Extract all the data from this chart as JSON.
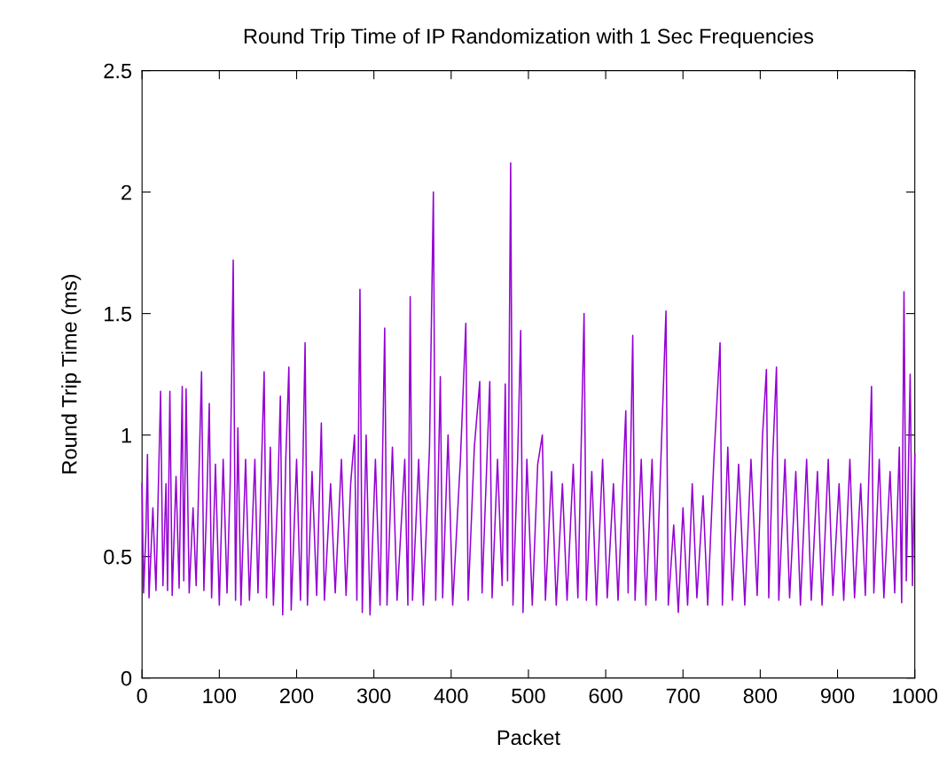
{
  "chart_data": {
    "type": "line",
    "title": "Round Trip Time of IP Randomization with 1 Sec Frequencies",
    "xlabel": "Packet",
    "ylabel": "Round Trip Time (ms)",
    "xlim": [
      0,
      1000
    ],
    "xticks": [
      0,
      100,
      200,
      300,
      400,
      500,
      600,
      700,
      800,
      900,
      1000
    ],
    "ylim": [
      0,
      2.5
    ],
    "yticks": [
      0,
      0.5,
      1,
      1.5,
      2,
      2.5
    ],
    "grid": false,
    "legend": false,
    "series": [
      {
        "color": "#9400d3",
        "x": [
          0,
          2,
          5,
          7,
          9,
          14,
          18,
          24,
          27,
          31,
          33,
          36,
          39,
          44,
          48,
          52,
          54,
          57,
          61,
          66,
          70,
          77,
          80,
          84,
          87,
          90,
          95,
          100,
          105,
          110,
          114,
          118,
          121,
          124,
          128,
          134,
          139,
          146,
          150,
          158,
          161,
          166,
          170,
          176,
          179,
          182,
          186,
          190,
          193,
          200,
          205,
          211,
          214,
          220,
          226,
          232,
          236,
          244,
          250,
          258,
          264,
          270,
          275,
          278,
          282,
          285,
          290,
          295,
          302,
          308,
          314,
          317,
          324,
          330,
          340,
          344,
          347,
          350,
          358,
          364,
          372,
          377,
          380,
          386,
          389,
          396,
          402,
          412,
          419,
          422,
          430,
          437,
          440,
          450,
          453,
          460,
          466,
          470,
          473,
          477,
          480,
          486,
          490,
          493,
          498,
          505,
          512,
          518,
          522,
          530,
          536,
          544,
          550,
          558,
          564,
          572,
          575,
          582,
          588,
          596,
          602,
          610,
          616,
          626,
          629,
          635,
          638,
          646,
          652,
          660,
          665,
          672,
          678,
          681,
          688,
          694,
          700,
          706,
          712,
          718,
          726,
          732,
          740,
          748,
          751,
          758,
          764,
          772,
          780,
          788,
          796,
          803,
          808,
          811,
          816,
          821,
          824,
          832,
          838,
          846,
          852,
          860,
          866,
          874,
          880,
          888,
          894,
          902,
          908,
          916,
          922,
          930,
          936,
          944,
          947,
          954,
          960,
          968,
          974,
          980,
          983,
          986,
          989,
          994,
          997,
          1000
        ],
        "values": [
          0.8,
          0.35,
          0.6,
          0.92,
          0.33,
          0.7,
          0.36,
          1.18,
          0.38,
          0.8,
          0.36,
          1.18,
          0.34,
          0.83,
          0.37,
          1.2,
          0.4,
          1.19,
          0.35,
          0.7,
          0.38,
          1.26,
          0.36,
          0.75,
          1.13,
          0.33,
          0.88,
          0.3,
          0.9,
          0.35,
          0.8,
          1.72,
          0.32,
          1.03,
          0.3,
          0.9,
          0.32,
          0.9,
          0.35,
          1.26,
          0.33,
          0.95,
          0.3,
          0.8,
          1.16,
          0.26,
          0.9,
          1.28,
          0.28,
          0.9,
          0.32,
          1.38,
          0.3,
          0.85,
          0.34,
          1.05,
          0.32,
          0.8,
          0.35,
          0.9,
          0.34,
          0.8,
          1.0,
          0.32,
          1.6,
          0.27,
          1.0,
          0.26,
          0.9,
          0.3,
          1.44,
          0.3,
          0.95,
          0.32,
          0.9,
          0.3,
          1.57,
          0.32,
          0.9,
          0.3,
          0.95,
          2.0,
          0.32,
          1.24,
          0.33,
          1.0,
          0.3,
          0.9,
          1.46,
          0.32,
          0.95,
          1.22,
          0.35,
          1.22,
          0.33,
          0.9,
          0.38,
          1.21,
          0.4,
          2.12,
          0.3,
          0.9,
          1.43,
          0.27,
          0.9,
          0.3,
          0.88,
          1.0,
          0.32,
          0.85,
          0.3,
          0.8,
          0.32,
          0.88,
          0.33,
          1.5,
          0.32,
          0.85,
          0.3,
          0.9,
          0.33,
          0.8,
          0.32,
          1.1,
          0.35,
          1.41,
          0.32,
          0.9,
          0.3,
          0.9,
          0.32,
          0.95,
          1.51,
          0.3,
          0.63,
          0.27,
          0.7,
          0.3,
          0.8,
          0.33,
          0.75,
          0.3,
          0.9,
          1.38,
          0.3,
          0.95,
          0.32,
          0.88,
          0.3,
          0.9,
          0.34,
          1.0,
          1.27,
          0.33,
          0.9,
          1.28,
          0.32,
          0.9,
          0.33,
          0.85,
          0.3,
          0.9,
          0.32,
          0.85,
          0.3,
          0.9,
          0.34,
          0.8,
          0.32,
          0.9,
          0.33,
          0.8,
          0.34,
          1.2,
          0.35,
          0.9,
          0.33,
          0.85,
          0.35,
          0.95,
          0.31,
          1.59,
          0.4,
          1.25,
          0.38,
          0.92
        ]
      }
    ]
  }
}
